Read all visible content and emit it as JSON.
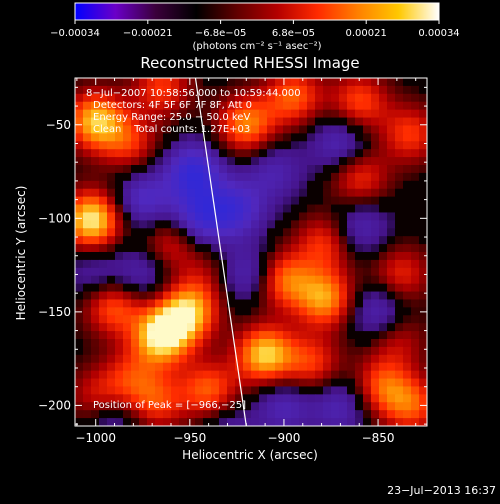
{
  "chart_data": {
    "type": "heatmap",
    "title": "Reconstructed RHESSI Image",
    "xlabel": "Heliocentric X (arcsec)",
    "ylabel": "Heliocentric Y (arcsec)",
    "xlim": [
      -1011,
      -824
    ],
    "ylim": [
      -211,
      -25
    ],
    "x_ticks": [
      -1000,
      -950,
      -900,
      -850
    ],
    "x_tick_labels": [
      "−1000",
      "−950",
      "−900",
      "−850"
    ],
    "y_ticks": [
      -50,
      -100,
      -150,
      -200
    ],
    "y_tick_labels": [
      "−50",
      "−100",
      "−150",
      "−200"
    ],
    "colorbar": {
      "range": [
        -0.00034,
        0.00034
      ],
      "tick_labels": [
        "−0.00034",
        "−0.00021",
        "−6.8e−05",
        "6.8e−05",
        "0.00021",
        "0.00034"
      ],
      "unit": "(photons cm⁻² s⁻¹ asec⁻²)",
      "colors": [
        "#0000ff",
        "#6a00c8",
        "#3a003a",
        "#000000",
        "#600000",
        "#b40000",
        "#ff2a00",
        "#ff8000",
        "#ffc800",
        "#ffffff"
      ]
    },
    "annotations": [
      "8−Jul−2007 10:58:56.000 to 10:59:44.000",
      "Detectors: 4F 5F 6F 7F 8F, Att 0",
      "Energy Range: 25.0 − 50.0 keV",
      "Clean    Total counts: 1.27E+03"
    ],
    "peak_label": "Position of Peak = [−966,−25]",
    "limb_line": [
      [
        -947,
        -25
      ],
      [
        -920,
        -211
      ]
    ],
    "image_blobs": [
      {
        "x": -1002,
        "y": -101,
        "v": 1.0
      },
      {
        "x": -991,
        "y": -147,
        "v": 0.6
      },
      {
        "x": -982,
        "y": -60,
        "v": 0.45
      },
      {
        "x": -1000,
        "y": -48,
        "v": 0.85
      },
      {
        "x": -1000,
        "y": -195,
        "v": 0.35
      },
      {
        "x": -982,
        "y": -185,
        "v": 0.4
      },
      {
        "x": -965,
        "y": -163,
        "v": 1.0
      },
      {
        "x": -951,
        "y": -150,
        "v": 0.85
      },
      {
        "x": -968,
        "y": -198,
        "v": 0.5
      },
      {
        "x": -940,
        "y": -192,
        "v": 0.6
      },
      {
        "x": -960,
        "y": -113,
        "v": 0.45
      },
      {
        "x": -940,
        "y": -130,
        "v": 0.25
      },
      {
        "x": -965,
        "y": -30,
        "v": 0.5
      },
      {
        "x": -920,
        "y": -50,
        "v": 0.7
      },
      {
        "x": -895,
        "y": -35,
        "v": 0.6
      },
      {
        "x": -860,
        "y": -38,
        "v": 0.55
      },
      {
        "x": -833,
        "y": -55,
        "v": 0.5
      },
      {
        "x": -860,
        "y": -78,
        "v": 0.5
      },
      {
        "x": -878,
        "y": -113,
        "v": 0.5
      },
      {
        "x": -900,
        "y": -133,
        "v": 0.65
      },
      {
        "x": -878,
        "y": -143,
        "v": 0.75
      },
      {
        "x": -910,
        "y": -173,
        "v": 0.9
      },
      {
        "x": -885,
        "y": -178,
        "v": 0.5
      },
      {
        "x": -848,
        "y": -190,
        "v": 0.55
      },
      {
        "x": -832,
        "y": -200,
        "v": 0.55
      },
      {
        "x": -838,
        "y": -130,
        "v": 0.45
      },
      {
        "x": -840,
        "y": -165,
        "v": 0.35
      },
      {
        "x": -975,
        "y": -90,
        "v": -0.5
      },
      {
        "x": -948,
        "y": -75,
        "v": -0.7
      },
      {
        "x": -945,
        "y": -100,
        "v": -0.6
      },
      {
        "x": -925,
        "y": -95,
        "v": -0.55
      },
      {
        "x": -920,
        "y": -130,
        "v": -0.45
      },
      {
        "x": -1000,
        "y": -130,
        "v": -0.3
      },
      {
        "x": -870,
        "y": -60,
        "v": -0.45
      },
      {
        "x": -860,
        "y": -105,
        "v": -0.4
      },
      {
        "x": -850,
        "y": -150,
        "v": -0.45
      },
      {
        "x": -870,
        "y": -200,
        "v": -0.4
      },
      {
        "x": -900,
        "y": -200,
        "v": -0.4
      },
      {
        "x": -930,
        "y": -215,
        "v": -0.3
      },
      {
        "x": -990,
        "y": -210,
        "v": -0.3
      },
      {
        "x": -905,
        "y": -75,
        "v": -0.35
      },
      {
        "x": -975,
        "y": -130,
        "v": -0.35
      }
    ]
  },
  "footer_timestamp": "23−Jul−2013 16:37"
}
